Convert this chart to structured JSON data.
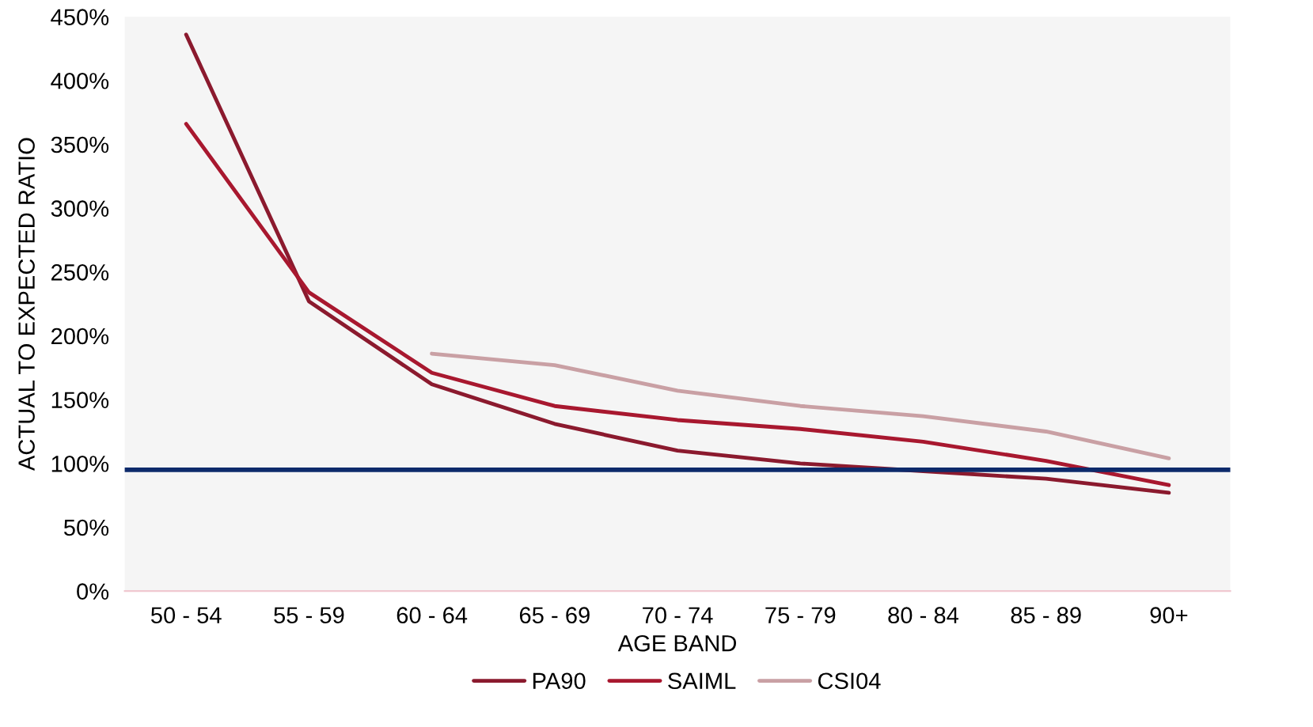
{
  "chart_data": {
    "type": "line",
    "xlabel": "AGE BAND",
    "ylabel": "ACTUAL TO EXPECTED RATIO",
    "categories": [
      "50 - 54",
      "55 - 59",
      "60 - 64",
      "65 - 69",
      "70 - 74",
      "75 - 79",
      "80 - 84",
      "85 - 89",
      "90+"
    ],
    "series": [
      {
        "name": "PA90",
        "color": "#8b1a2e",
        "values": [
          436,
          227,
          162,
          131,
          110,
          100,
          94,
          88,
          77
        ]
      },
      {
        "name": "SAIML",
        "color": "#a8182f",
        "values": [
          366,
          234,
          171,
          145,
          134,
          127,
          117,
          102,
          83
        ]
      },
      {
        "name": "CSI04",
        "color": "#c9a0a4",
        "values": [
          null,
          null,
          186,
          177,
          157,
          145,
          137,
          125,
          104
        ]
      }
    ],
    "ylim": [
      0,
      450
    ],
    "yticks": [
      {
        "value": 0,
        "label": "0%"
      },
      {
        "value": 50,
        "label": "50%"
      },
      {
        "value": 100,
        "label": "100%"
      },
      {
        "value": 150,
        "label": "150%"
      },
      {
        "value": 200,
        "label": "200%"
      },
      {
        "value": 250,
        "label": "250%"
      },
      {
        "value": 300,
        "label": "300%"
      },
      {
        "value": 350,
        "label": "350%"
      },
      {
        "value": 400,
        "label": "400%"
      },
      {
        "value": 450,
        "label": "450%"
      }
    ],
    "ref_lines": [
      {
        "axis": "y",
        "value": 95,
        "label": null,
        "color": "#0d2a6b",
        "line_style": "solid"
      }
    ],
    "grid": false,
    "legend": "bottom",
    "marker": "none",
    "line_style": "solid"
  }
}
